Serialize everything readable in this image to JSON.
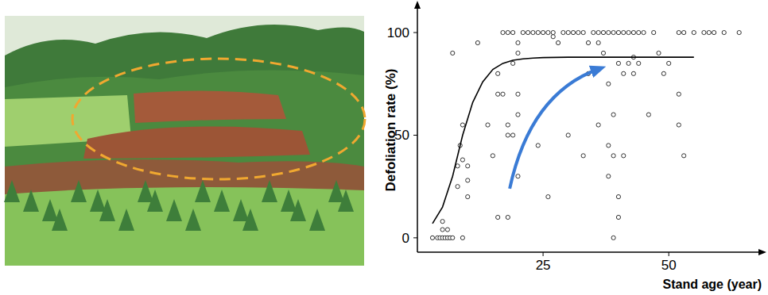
{
  "chart_data": {
    "type": "scatter",
    "x_label": "Stand age (year)",
    "y_label": "Defoliation rate (%)",
    "xlim": [
      0,
      68
    ],
    "ylim": [
      -7,
      112
    ],
    "xticks": [
      25,
      50
    ],
    "yticks": [
      0,
      50,
      100
    ],
    "grid": false,
    "series": [
      {
        "type": "scatter",
        "marker": "circle",
        "color": "#333333",
        "x": [
          3,
          4,
          4.5,
          5,
          5.5,
          6,
          6.5,
          7,
          9,
          5,
          6,
          5,
          7,
          8,
          8,
          9,
          8.5,
          9,
          10,
          10,
          12,
          10,
          14,
          16,
          16,
          18,
          17,
          18,
          19,
          20,
          20,
          19,
          20,
          20,
          18,
          17,
          18,
          19,
          21,
          22,
          23,
          24,
          25,
          26,
          27,
          28,
          29,
          30,
          31,
          32,
          33,
          34,
          35,
          36,
          37,
          38,
          39,
          40,
          41,
          42,
          43,
          44,
          45,
          47,
          52,
          53,
          55,
          58,
          59,
          61,
          64,
          26,
          30,
          33,
          34,
          36,
          37,
          38,
          38,
          38,
          39,
          39,
          39,
          40,
          40,
          41,
          42,
          43,
          44,
          46,
          50,
          52,
          52,
          53,
          48,
          16,
          20,
          24,
          15,
          41,
          43,
          36,
          27,
          57,
          49,
          40
        ],
        "values": [
          0,
          0,
          0,
          0,
          0,
          0,
          0,
          0,
          0,
          4,
          4,
          8,
          90,
          25,
          35,
          38,
          45,
          55,
          20,
          35,
          95,
          28,
          55,
          80,
          10,
          10,
          70,
          50,
          50,
          95,
          90,
          85,
          60,
          70,
          55,
          100,
          100,
          100,
          100,
          100,
          100,
          100,
          100,
          100,
          100,
          95,
          100,
          100,
          100,
          100,
          100,
          95,
          100,
          100,
          100,
          100,
          100,
          100,
          100,
          100,
          100,
          100,
          100,
          100,
          100,
          100,
          100,
          100,
          100,
          100,
          100,
          20,
          50,
          40,
          80,
          55,
          90,
          30,
          45,
          75,
          60,
          40,
          0,
          20,
          85,
          80,
          85,
          80,
          85,
          60,
          85,
          70,
          55,
          40,
          90,
          70,
          30,
          45,
          40,
          40,
          88,
          95,
          98,
          100,
          80,
          10
        ]
      },
      {
        "type": "line",
        "line_style": "solid",
        "color": "#000000",
        "x": [
          3,
          5,
          7,
          9,
          11,
          13,
          15,
          17,
          19,
          21,
          23,
          25,
          30,
          35,
          40,
          45,
          50,
          55
        ],
        "values": [
          7,
          15,
          30,
          50,
          66,
          76,
          82,
          85,
          86.5,
          87.2,
          87.6,
          87.8,
          88,
          88,
          88,
          88,
          88,
          88
        ]
      }
    ]
  }
}
